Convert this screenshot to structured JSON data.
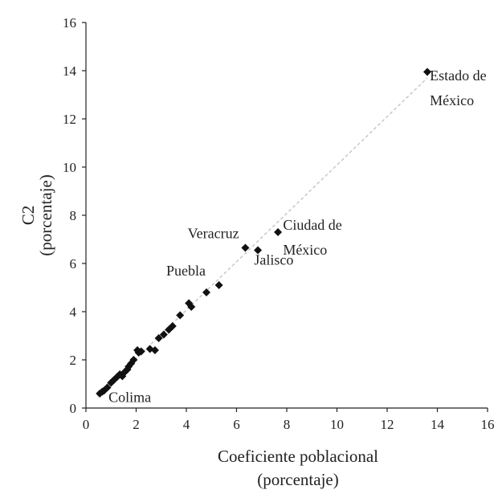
{
  "chart_data": {
    "type": "scatter",
    "xlabel_lines": [
      "Coeficiente poblacional",
      "(porcentaje)"
    ],
    "ylabel_lines": [
      "C2",
      "(porcentaje)"
    ],
    "xlim": [
      0,
      16
    ],
    "ylim": [
      0,
      16
    ],
    "xticks": [
      "0",
      "2",
      "4",
      "6",
      "8",
      "10",
      "12",
      "14",
      "16"
    ],
    "yticks": [
      "0",
      "2",
      "4",
      "6",
      "8",
      "10",
      "12",
      "14",
      "16"
    ],
    "grid": false,
    "legend": "none",
    "marker": "diamond",
    "marker_color": "#111111",
    "trendline": {
      "style": "dashed",
      "color": "#c8c8c8",
      "x": [
        0.5,
        13.6
      ],
      "y": [
        0.55,
        13.7
      ]
    },
    "points": [
      {
        "x": 0.55,
        "y": 0.6
      },
      {
        "x": 0.65,
        "y": 0.68
      },
      {
        "x": 0.72,
        "y": 0.72
      },
      {
        "x": 0.85,
        "y": 0.85
      },
      {
        "x": 1.0,
        "y": 1.05
      },
      {
        "x": 1.1,
        "y": 1.15
      },
      {
        "x": 1.25,
        "y": 1.3
      },
      {
        "x": 1.35,
        "y": 1.4
      },
      {
        "x": 1.45,
        "y": 1.32
      },
      {
        "x": 1.55,
        "y": 1.5
      },
      {
        "x": 1.65,
        "y": 1.6
      },
      {
        "x": 1.7,
        "y": 1.72
      },
      {
        "x": 1.8,
        "y": 1.85
      },
      {
        "x": 1.9,
        "y": 2.0
      },
      {
        "x": 2.05,
        "y": 2.4
      },
      {
        "x": 2.1,
        "y": 2.3
      },
      {
        "x": 2.2,
        "y": 2.35
      },
      {
        "x": 2.55,
        "y": 2.45
      },
      {
        "x": 2.75,
        "y": 2.4
      },
      {
        "x": 2.9,
        "y": 2.9
      },
      {
        "x": 3.1,
        "y": 3.05
      },
      {
        "x": 3.3,
        "y": 3.25
      },
      {
        "x": 3.45,
        "y": 3.4
      },
      {
        "x": 3.75,
        "y": 3.85
      },
      {
        "x": 4.1,
        "y": 4.35
      },
      {
        "x": 4.2,
        "y": 4.2
      },
      {
        "x": 4.8,
        "y": 4.8
      },
      {
        "x": 5.3,
        "y": 5.1
      },
      {
        "x": 6.35,
        "y": 6.65
      },
      {
        "x": 6.85,
        "y": 6.55
      },
      {
        "x": 7.65,
        "y": 7.3
      },
      {
        "x": 13.6,
        "y": 13.95
      }
    ],
    "annotations": [
      {
        "lines": [
          "Estado de",
          "México"
        ],
        "x": 13.7,
        "y": 13.6,
        "anchor": "start"
      },
      {
        "lines": [
          "Ciudad de",
          "México"
        ],
        "x": 7.85,
        "y": 7.4,
        "anchor": "start"
      },
      {
        "lines": [
          "Veracruz"
        ],
        "x": 6.1,
        "y": 7.05,
        "anchor": "end"
      },
      {
        "lines": [
          "Jalisco"
        ],
        "x": 6.7,
        "y": 5.95,
        "anchor": "start"
      },
      {
        "lines": [
          "Puebla"
        ],
        "x": 3.2,
        "y": 5.5,
        "anchor": "start"
      },
      {
        "lines": [
          "Colima"
        ],
        "x": 0.9,
        "y": 0.25,
        "anchor": "start"
      }
    ]
  }
}
